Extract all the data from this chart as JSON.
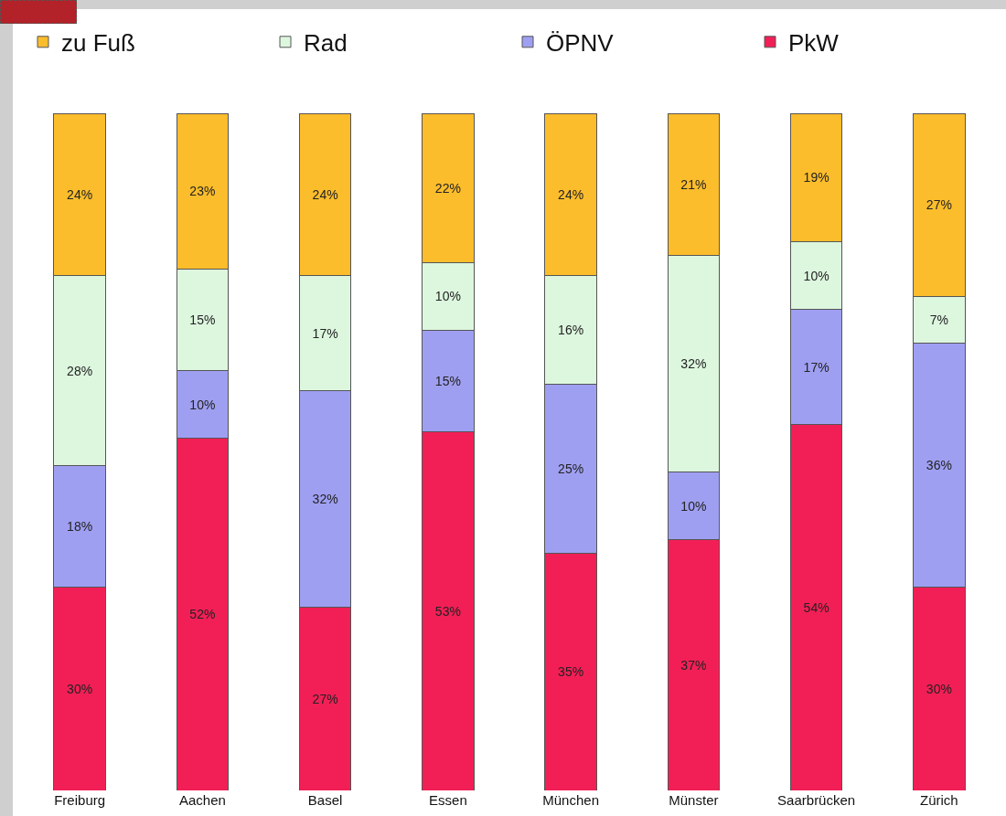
{
  "chart_data": {
    "type": "bar",
    "stacked": true,
    "legend": "top",
    "tick_labels": "x",
    "categories": [
      "Freiburg",
      "Aachen",
      "Basel",
      "Essen",
      "München",
      "Münster",
      "Saarbrücken",
      "Zürich"
    ],
    "series": [
      {
        "name": "PkW",
        "color": "#f21f56",
        "values": [
          30,
          52,
          27,
          53,
          35,
          37,
          54,
          30
        ],
        "value_labels": [
          "30%",
          "52%",
          "27%",
          "53%",
          "35%",
          "37%",
          "54%",
          "30%"
        ]
      },
      {
        "name": "ÖPNV",
        "color": "#9f9ff2",
        "values": [
          18,
          10,
          32,
          15,
          25,
          10,
          17,
          36
        ],
        "value_labels": [
          "18%",
          "10%",
          "32%",
          "15%",
          "25%",
          "10%",
          "17%",
          "36%"
        ]
      },
      {
        "name": "Rad",
        "color": "#ddf7df",
        "values": [
          28,
          15,
          17,
          10,
          16,
          32,
          10,
          7
        ],
        "value_labels": [
          "28%",
          "15%",
          "17%",
          "10%",
          "16%",
          "32%",
          "10%",
          "7%"
        ]
      },
      {
        "name": "zu Fuß",
        "color": "#fcbd2c",
        "values": [
          24,
          23,
          24,
          22,
          24,
          21,
          19,
          27
        ],
        "value_labels": [
          "24%",
          "23%",
          "24%",
          "22%",
          "24%",
          "21%",
          "19%",
          "27%"
        ]
      }
    ]
  }
}
